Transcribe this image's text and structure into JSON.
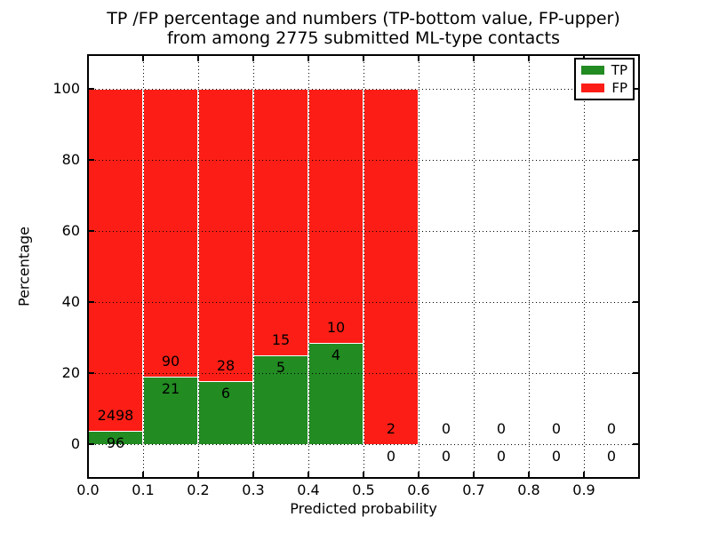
{
  "chart_data": {
    "type": "bar",
    "stacked": true,
    "title": "TP /FP percentage and numbers (TP-bottom value, FP-upper)\nfrom among 2775 submitted ML-type contacts",
    "title_line1": "TP /FP percentage and numbers (TP-bottom value, FP-upper)",
    "title_line2": "from among 2775 submitted ML-type contacts",
    "xlabel": "Predicted probability",
    "ylabel": "Percentage",
    "total_contacts": 2775,
    "xlim": [
      0.0,
      1.0
    ],
    "ylim": [
      0,
      100
    ],
    "grid": "dotted, drawn above bars",
    "legend_position": "upper right",
    "x_tick_labels": [
      "0.0",
      "0.1",
      "0.2",
      "0.3",
      "0.4",
      "0.5",
      "0.6",
      "0.7",
      "0.8",
      "0.9"
    ],
    "y_tick_labels": [
      "0",
      "20",
      "40",
      "60",
      "80",
      "100"
    ],
    "bin_width": 0.1,
    "categories": [
      "0.0-0.1",
      "0.1-0.2",
      "0.2-0.3",
      "0.3-0.4",
      "0.4-0.5",
      "0.5-0.6",
      "0.6-0.7",
      "0.7-0.8",
      "0.8-0.9",
      "0.9-1.0"
    ],
    "series": [
      {
        "name": "TP",
        "color": "#228b22",
        "counts": [
          96,
          21,
          6,
          5,
          4,
          0,
          0,
          0,
          0,
          0
        ]
      },
      {
        "name": "FP",
        "color": "#fc1e16",
        "counts": [
          2498,
          90,
          28,
          15,
          10,
          2,
          0,
          0,
          0,
          0
        ]
      }
    ],
    "tp_percent_of_bin": [
      3.7,
      18.9,
      17.6,
      25.0,
      28.6,
      0.0,
      0.0,
      0.0,
      0.0,
      0.0
    ],
    "bars_drawn_for_bins": [
      0,
      1,
      2,
      3,
      4,
      5
    ]
  }
}
